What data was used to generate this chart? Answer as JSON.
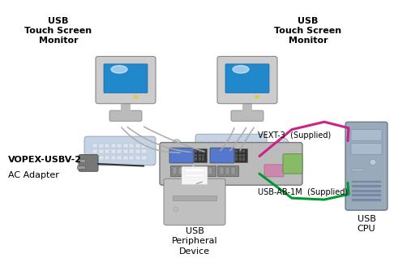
{
  "bg_color": "#ffffff",
  "labels": {
    "monitor_left": "USB\nTouch Screen\nMonitor",
    "monitor_right": "USB\nTouch Screen\nMonitor",
    "hub": "VOPEX-USBV-2",
    "ac_adapter": "AC Adapter",
    "peripheral": "USB\nPeripheral\nDevice",
    "cpu": "USB\nCPU",
    "vext": "VEXT-3  (Supplied)",
    "usb_ab": "USB-AB-1M  (Supplied)"
  },
  "vext_color": "#cc2288",
  "usb_ab_color": "#009933",
  "cable_color": "#aaaaaa",
  "black_cable": "#333333",
  "monitor_screen_color": "#2288cc",
  "monitor_body_color": "#cccccc",
  "monitor_base_color": "#bbbbbb",
  "hub_body_color": "#bbbbbb",
  "cpu_body_color": "#99aabb",
  "cpu_dark": "#7788aa",
  "keyboard_color": "#c4d4e4",
  "mouse_color": "#d0dce8",
  "printer_color": "#c0c0c0",
  "font_size_small": 7,
  "font_size_label": 8,
  "font_size_bold": 8
}
